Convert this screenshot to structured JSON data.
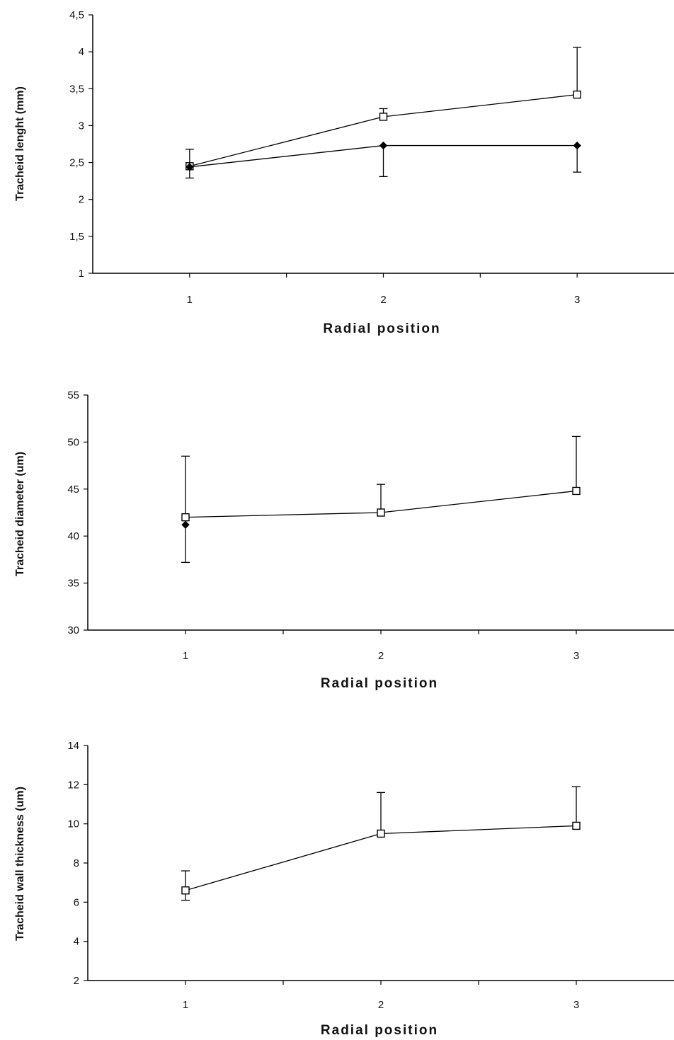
{
  "chart_data": [
    {
      "type": "line",
      "title": "",
      "xlabel": "Radial position",
      "ylabel": "Tracheid lenght (mm)",
      "x": [
        1,
        2,
        3
      ],
      "xlim": [
        0.5,
        3.5
      ],
      "ylim": [
        1,
        4.5
      ],
      "yticks": [
        "1",
        "1,5",
        "2",
        "2,5",
        "3",
        "3,5",
        "4",
        "4,5"
      ],
      "ytick_values": [
        1,
        1.5,
        2,
        2.5,
        3,
        3.5,
        4,
        4.5
      ],
      "xticks": [
        "1",
        "2",
        "3"
      ],
      "grid": false,
      "series": [
        {
          "marker": "square-open",
          "values": [
            2.45,
            3.12,
            3.42
          ],
          "error_upper": [
            2.68,
            3.23,
            4.06
          ],
          "error_lower": [
            null,
            null,
            null
          ]
        },
        {
          "marker": "diamond-filled",
          "values": [
            2.44,
            2.73,
            2.73
          ],
          "error_upper": [
            null,
            null,
            null
          ],
          "error_lower": [
            2.29,
            2.31,
            2.37
          ]
        }
      ]
    },
    {
      "type": "line",
      "title": "",
      "xlabel": "Radial position",
      "ylabel": "Tracheid diameter (um)",
      "x": [
        1,
        2,
        3
      ],
      "xlim": [
        0.5,
        3.5
      ],
      "ylim": [
        30,
        55
      ],
      "yticks": [
        "30",
        "35",
        "40",
        "45",
        "50",
        "55"
      ],
      "ytick_values": [
        30,
        35,
        40,
        45,
        50,
        55
      ],
      "xticks": [
        "1",
        "2",
        "3"
      ],
      "grid": false,
      "series": [
        {
          "marker": "square-open",
          "values": [
            42.0,
            42.5,
            44.8
          ],
          "error_upper": [
            48.5,
            45.5,
            50.6
          ],
          "error_lower": [
            37.2,
            null,
            null
          ]
        },
        {
          "marker": "diamond-filled",
          "values": [
            41.2,
            null,
            null
          ],
          "error_upper": [
            null,
            null,
            null
          ],
          "error_lower": [
            null,
            null,
            null
          ]
        }
      ]
    },
    {
      "type": "line",
      "title": "",
      "xlabel": "Radial position",
      "ylabel": "Tracheid wall thickness (um)",
      "x": [
        1,
        2,
        3
      ],
      "xlim": [
        0.5,
        3.5
      ],
      "ylim": [
        2,
        14
      ],
      "yticks": [
        "2",
        "4",
        "6",
        "8",
        "10",
        "12",
        "14"
      ],
      "ytick_values": [
        2,
        4,
        6,
        8,
        10,
        12,
        14
      ],
      "xticks": [
        "1",
        "2",
        "3"
      ],
      "grid": false,
      "series": [
        {
          "marker": "square-open",
          "values": [
            6.6,
            9.5,
            9.9
          ],
          "error_upper": [
            7.6,
            11.6,
            11.9
          ],
          "error_lower": [
            6.1,
            null,
            null
          ]
        }
      ]
    }
  ]
}
